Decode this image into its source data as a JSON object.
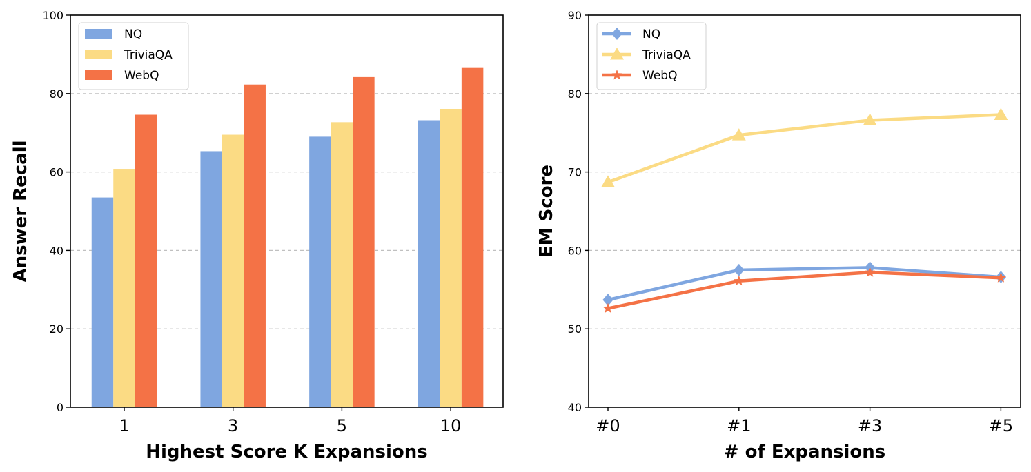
{
  "chart_data": [
    {
      "type": "bar",
      "categories": [
        "1",
        "3",
        "5",
        "10"
      ],
      "series": [
        {
          "name": "NQ",
          "values": [
            53.5,
            65.3,
            69.0,
            73.2
          ]
        },
        {
          "name": "TriviaQA",
          "values": [
            60.8,
            69.5,
            72.7,
            76.1
          ]
        },
        {
          "name": "WebQ",
          "values": [
            74.6,
            82.3,
            84.2,
            86.7
          ]
        }
      ],
      "xlabel": "Highest Score K Expansions",
      "ylabel": "Answer Recall",
      "ylim": [
        0,
        100
      ],
      "yticks": [
        "0",
        "20",
        "40",
        "60",
        "80",
        "100"
      ],
      "grid": "horizontal dashed",
      "legend": "top-left",
      "colors": [
        "#7fa6e0",
        "#fbdb84",
        "#f47246"
      ]
    },
    {
      "type": "line",
      "categories": [
        "#0",
        "#1",
        "#3",
        "#5"
      ],
      "series": [
        {
          "name": "NQ",
          "values": [
            53.7,
            57.5,
            57.8,
            56.6
          ],
          "marker": "diamond"
        },
        {
          "name": "TriviaQA",
          "values": [
            68.7,
            74.7,
            76.6,
            77.3
          ],
          "marker": "triangle"
        },
        {
          "name": "WebQ",
          "values": [
            52.6,
            56.1,
            57.2,
            56.5
          ],
          "marker": "star"
        }
      ],
      "xlabel": "# of Expansions",
      "ylabel": "EM Score",
      "ylim": [
        40,
        90
      ],
      "yticks": [
        "40",
        "50",
        "60",
        "70",
        "80",
        "90"
      ],
      "grid": "horizontal dashed",
      "legend": "top-left",
      "colors": [
        "#7fa6e0",
        "#fbdb84",
        "#f47246"
      ]
    }
  ]
}
